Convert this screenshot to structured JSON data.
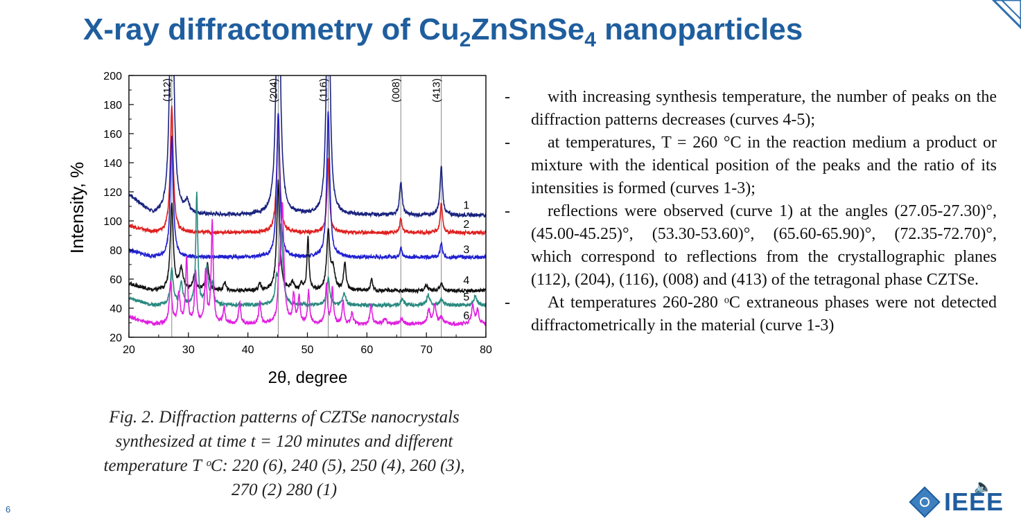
{
  "slide": {
    "title_pre": "X-ray diffractometry of Cu",
    "title_sub1": "2",
    "title_mid": "ZnSnSe",
    "title_sub2": "4",
    "title_post": " nanoparticles",
    "page_number": "6",
    "logo_text": "IEEE",
    "accent_color": "#1f5e9e"
  },
  "caption": {
    "line1": "Fig. 2. Diffraction patterns of  CZTSe  nanocrystals",
    "line2": "synthesized at  time t = 120 minutes and different",
    "line3": "temperature T ᵒC: 220 (6), 240 (5), 250 (4), 260 (3),",
    "line4": "270 (2) 280 (1)"
  },
  "bullets": [
    {
      "dash": "-",
      "text": "with increasing synthesis temperature, the number of peaks on the diffraction patterns decreases (curves 4-5);"
    },
    {
      "dash": "-",
      "text": "at temperatures, T = 260 °C in the reaction medium a product or mixture with the identical position of the peaks and the ratio of its intensities is formed (curves 1-3);"
    },
    {
      "dash": "-",
      "text": "reflections were observed (curve 1) at the angles (27.05-27.30)°, (45.00-45.25)°, (53.30-53.60)°, (65.60-65.90)°, (72.35-72.70)°, which correspond to reflections from the crystallographic planes (112), (204), (116), (008) and (413) of the tetragonal phase CZTSe."
    },
    {
      "dash": "-",
      "text": "At temperatures 260-280 ᵒC extraneous phases were not detected diffractometrically in the material (curve 1-3)"
    }
  ],
  "chart_data": {
    "type": "line",
    "xlabel": "2θ, degree",
    "ylabel": "Intensity, %",
    "xlim": [
      20,
      80
    ],
    "ylim": [
      20,
      200
    ],
    "xticks": [
      20,
      30,
      40,
      50,
      60,
      70,
      80
    ],
    "yticks": [
      20,
      40,
      60,
      80,
      100,
      120,
      140,
      160,
      180,
      200
    ],
    "reference_lines": [
      {
        "x": 27.2,
        "label": "(112)"
      },
      {
        "x": 45.1,
        "label": "(204)"
      },
      {
        "x": 53.5,
        "label": "(116)"
      },
      {
        "x": 65.7,
        "label": "(008)"
      },
      {
        "x": 72.5,
        "label": "(413)"
      }
    ],
    "series": [
      {
        "name": "1",
        "color": "#1a237e",
        "baseline": 104,
        "peaks": [
          [
            27.2,
            215,
            0.35
          ],
          [
            29.8,
            8,
            0.4
          ],
          [
            45.1,
            215,
            0.35
          ],
          [
            53.5,
            215,
            0.3
          ],
          [
            65.7,
            23,
            0.25
          ],
          [
            72.5,
            33,
            0.25
          ]
        ]
      },
      {
        "name": "2",
        "color": "#e02020",
        "baseline": 92,
        "peaks": [
          [
            27.2,
            88,
            0.3
          ],
          [
            45.1,
            80,
            0.3
          ],
          [
            53.5,
            50,
            0.25
          ],
          [
            65.7,
            10,
            0.2
          ],
          [
            72.5,
            20,
            0.22
          ]
        ]
      },
      {
        "name": "3",
        "color": "#2020d0",
        "baseline": 75,
        "peaks": [
          [
            27.2,
            83,
            0.3
          ],
          [
            45.1,
            100,
            0.3
          ],
          [
            53.5,
            100,
            0.3
          ],
          [
            65.7,
            7,
            0.2
          ],
          [
            72.5,
            10,
            0.2
          ]
        ]
      },
      {
        "name": "4",
        "color": "#111111",
        "baseline": 52,
        "peaks": [
          [
            27.2,
            60,
            0.3
          ],
          [
            28.8,
            14,
            0.4
          ],
          [
            31.0,
            10,
            0.3
          ],
          [
            33.2,
            18,
            0.3
          ],
          [
            36.1,
            6,
            0.2
          ],
          [
            42.0,
            5,
            0.2
          ],
          [
            45.1,
            75,
            0.3
          ],
          [
            47.5,
            5,
            0.3
          ],
          [
            49.0,
            5,
            0.2
          ],
          [
            50.1,
            36,
            0.2
          ],
          [
            53.5,
            40,
            0.3
          ],
          [
            54.3,
            14,
            0.4
          ],
          [
            56.3,
            18,
            0.25
          ],
          [
            60.8,
            8,
            0.2
          ],
          [
            70.0,
            4,
            0.3
          ],
          [
            72.5,
            5,
            0.3
          ]
        ]
      },
      {
        "name": "5",
        "color": "#2a8a80",
        "baseline": 42,
        "peaks": [
          [
            27.2,
            25,
            0.3
          ],
          [
            28.8,
            15,
            0.3
          ],
          [
            31.4,
            76,
            0.2
          ],
          [
            33.1,
            25,
            0.25
          ],
          [
            34.0,
            15,
            0.25
          ],
          [
            44.8,
            15,
            0.25
          ],
          [
            45.6,
            55,
            0.3
          ],
          [
            53.5,
            18,
            0.3
          ],
          [
            56.2,
            8,
            0.3
          ],
          [
            66.0,
            4,
            0.3
          ],
          [
            70.3,
            7,
            0.3
          ],
          [
            72.5,
            4,
            0.3
          ],
          [
            78.2,
            6,
            0.3
          ]
        ]
      },
      {
        "name": "6",
        "color": "#e020e0",
        "baseline": 29,
        "peaks": [
          [
            27.0,
            28,
            0.25
          ],
          [
            28.4,
            20,
            0.25
          ],
          [
            29.7,
            46,
            0.2
          ],
          [
            31.2,
            35,
            0.2
          ],
          [
            32.9,
            36,
            0.2
          ],
          [
            34.0,
            70,
            0.2
          ],
          [
            36.0,
            11,
            0.2
          ],
          [
            38.6,
            15,
            0.2
          ],
          [
            42.0,
            15,
            0.2
          ],
          [
            45.2,
            24,
            0.2
          ],
          [
            45.8,
            80,
            0.3
          ],
          [
            47.7,
            20,
            0.2
          ],
          [
            48.6,
            18,
            0.2
          ],
          [
            50.2,
            22,
            0.2
          ],
          [
            53.2,
            26,
            0.2
          ],
          [
            54.2,
            24,
            0.2
          ],
          [
            56.0,
            15,
            0.2
          ],
          [
            57.5,
            8,
            0.2
          ],
          [
            60.7,
            14,
            0.2
          ],
          [
            63.0,
            4,
            0.3
          ],
          [
            65.8,
            4,
            0.3
          ],
          [
            70.4,
            10,
            0.25
          ],
          [
            71.4,
            14,
            0.25
          ],
          [
            72.5,
            5,
            0.3
          ],
          [
            77.8,
            13,
            0.25
          ],
          [
            78.6,
            9,
            0.25
          ]
        ]
      }
    ]
  }
}
